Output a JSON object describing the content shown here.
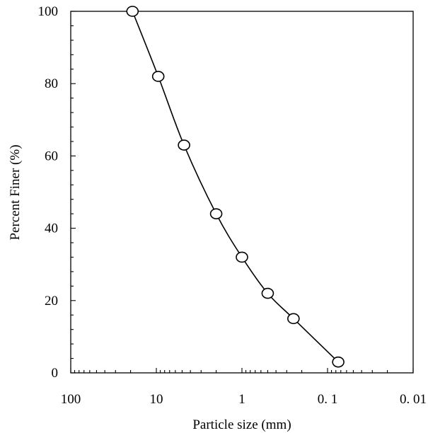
{
  "chart_data": {
    "type": "scatter",
    "title": "",
    "xlabel": "Particle size (mm)",
    "ylabel": "Percent Finer  (%)",
    "x_scale": "log",
    "x_reversed": true,
    "xlim": [
      100,
      0.01
    ],
    "ylim": [
      0,
      100
    ],
    "x_tick_labels": [
      "100",
      "10",
      "1",
      "0. 1",
      "0. 01"
    ],
    "y_tick_labels": [
      "0",
      "20",
      "40",
      "60",
      "80",
      "100"
    ],
    "grid": false,
    "legend": "none",
    "series": [
      {
        "marker": "open-circle",
        "line": "smooth",
        "points": [
          {
            "x": 19.0,
            "y": 100
          },
          {
            "x": 9.5,
            "y": 82
          },
          {
            "x": 4.75,
            "y": 63
          },
          {
            "x": 2.0,
            "y": 44
          },
          {
            "x": 1.0,
            "y": 32
          },
          {
            "x": 0.5,
            "y": 22
          },
          {
            "x": 0.25,
            "y": 15
          },
          {
            "x": 0.075,
            "y": 3
          }
        ]
      }
    ]
  },
  "colors": {
    "line": "#000000",
    "marker_fill": "#ffffff",
    "background": "#ffffff"
  }
}
